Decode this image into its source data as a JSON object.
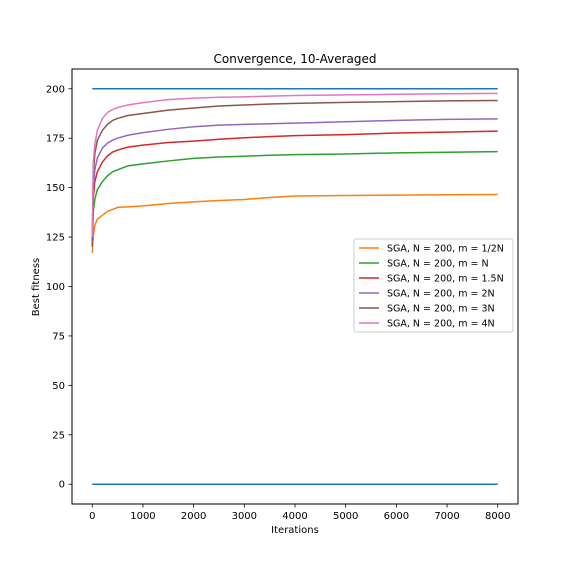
{
  "chart_data": {
    "type": "line",
    "title": "Convergence, 10-Averaged",
    "xlabel": "Iterations",
    "ylabel": "Best fitness",
    "xlim": [
      -400,
      8400
    ],
    "ylim": [
      -10,
      210
    ],
    "xticks": [
      0,
      1000,
      2000,
      3000,
      4000,
      5000,
      6000,
      7000,
      8000
    ],
    "yticks": [
      0,
      25,
      50,
      75,
      100,
      125,
      150,
      175,
      200
    ],
    "grid": false,
    "legend_position": "center-right",
    "reference_lines": [
      {
        "y": 200,
        "x_range": [
          0,
          8000
        ],
        "color": "#1f77b4"
      },
      {
        "y": 0,
        "x_range": [
          0,
          8000
        ],
        "color": "#1f77b4"
      }
    ],
    "series": [
      {
        "name": "SGA, N = 200, m = 1/2N",
        "color": "#ff7f0e",
        "x": [
          0,
          20,
          50,
          100,
          200,
          300,
          400,
          500,
          700,
          1000,
          1500,
          2000,
          2500,
          3000,
          3500,
          4000,
          5000,
          6000,
          7000,
          8000
        ],
        "y": [
          117,
          126,
          131,
          134,
          136,
          138,
          139,
          140,
          140.3,
          140.8,
          142,
          142.8,
          143.5,
          144,
          145,
          145.8,
          146,
          146.2,
          146.4,
          146.5
        ]
      },
      {
        "name": "SGA, N = 200, m = N",
        "color": "#2ca02c",
        "x": [
          0,
          20,
          50,
          100,
          200,
          300,
          400,
          500,
          700,
          1000,
          1500,
          2000,
          2500,
          3000,
          3500,
          4000,
          5000,
          6000,
          7000,
          8000
        ],
        "y": [
          120,
          138,
          144,
          149,
          153,
          156,
          158,
          159,
          161,
          162,
          163.5,
          164.8,
          165.5,
          165.9,
          166.4,
          166.7,
          167,
          167.6,
          167.9,
          168.2
        ]
      },
      {
        "name": "SGA, N = 200, m = 1.5N",
        "color": "#d62728",
        "x": [
          0,
          20,
          50,
          100,
          200,
          300,
          400,
          500,
          700,
          1000,
          1500,
          2000,
          2500,
          3000,
          3500,
          4000,
          5000,
          6000,
          7000,
          8000
        ],
        "y": [
          121,
          145,
          153,
          158,
          163,
          166,
          168,
          169,
          170.5,
          171.5,
          172.8,
          173.5,
          174.5,
          175.2,
          175.8,
          176.3,
          176.8,
          177.6,
          178.1,
          178.6
        ]
      },
      {
        "name": "SGA, N = 200, m = 2N",
        "color": "#9467bd",
        "x": [
          0,
          20,
          50,
          100,
          200,
          300,
          400,
          500,
          700,
          1000,
          1500,
          2000,
          2500,
          3000,
          3500,
          4000,
          5000,
          6000,
          7000,
          8000
        ],
        "y": [
          122,
          150,
          159,
          165,
          170,
          172.5,
          174,
          175,
          176.5,
          177.8,
          179.5,
          180.8,
          181.6,
          182,
          182.3,
          182.6,
          183.3,
          184,
          184.5,
          184.8
        ]
      },
      {
        "name": "SGA, N = 200, m = 3N",
        "color": "#8c564b",
        "x": [
          0,
          20,
          50,
          100,
          200,
          300,
          400,
          500,
          700,
          1000,
          1500,
          2000,
          2500,
          3000,
          3500,
          4000,
          5000,
          6000,
          7000,
          8000
        ],
        "y": [
          123,
          157,
          167,
          174,
          179,
          182,
          184,
          185,
          186.5,
          187.5,
          189.2,
          190.3,
          191.3,
          191.8,
          192.3,
          192.6,
          193.1,
          193.5,
          193.9,
          194.1
        ]
      },
      {
        "name": "SGA, N = 200, m = 4N",
        "color": "#e377c2",
        "x": [
          0,
          20,
          50,
          100,
          200,
          300,
          400,
          500,
          700,
          1000,
          1500,
          2000,
          2500,
          3000,
          3500,
          4000,
          5000,
          6000,
          7000,
          8000
        ],
        "y": [
          125,
          163,
          172,
          179,
          185,
          188,
          189.5,
          190.5,
          191.8,
          193,
          194.5,
          195.3,
          195.7,
          195.9,
          196.3,
          196.6,
          196.9,
          197.2,
          197.5,
          197.7
        ]
      }
    ]
  }
}
